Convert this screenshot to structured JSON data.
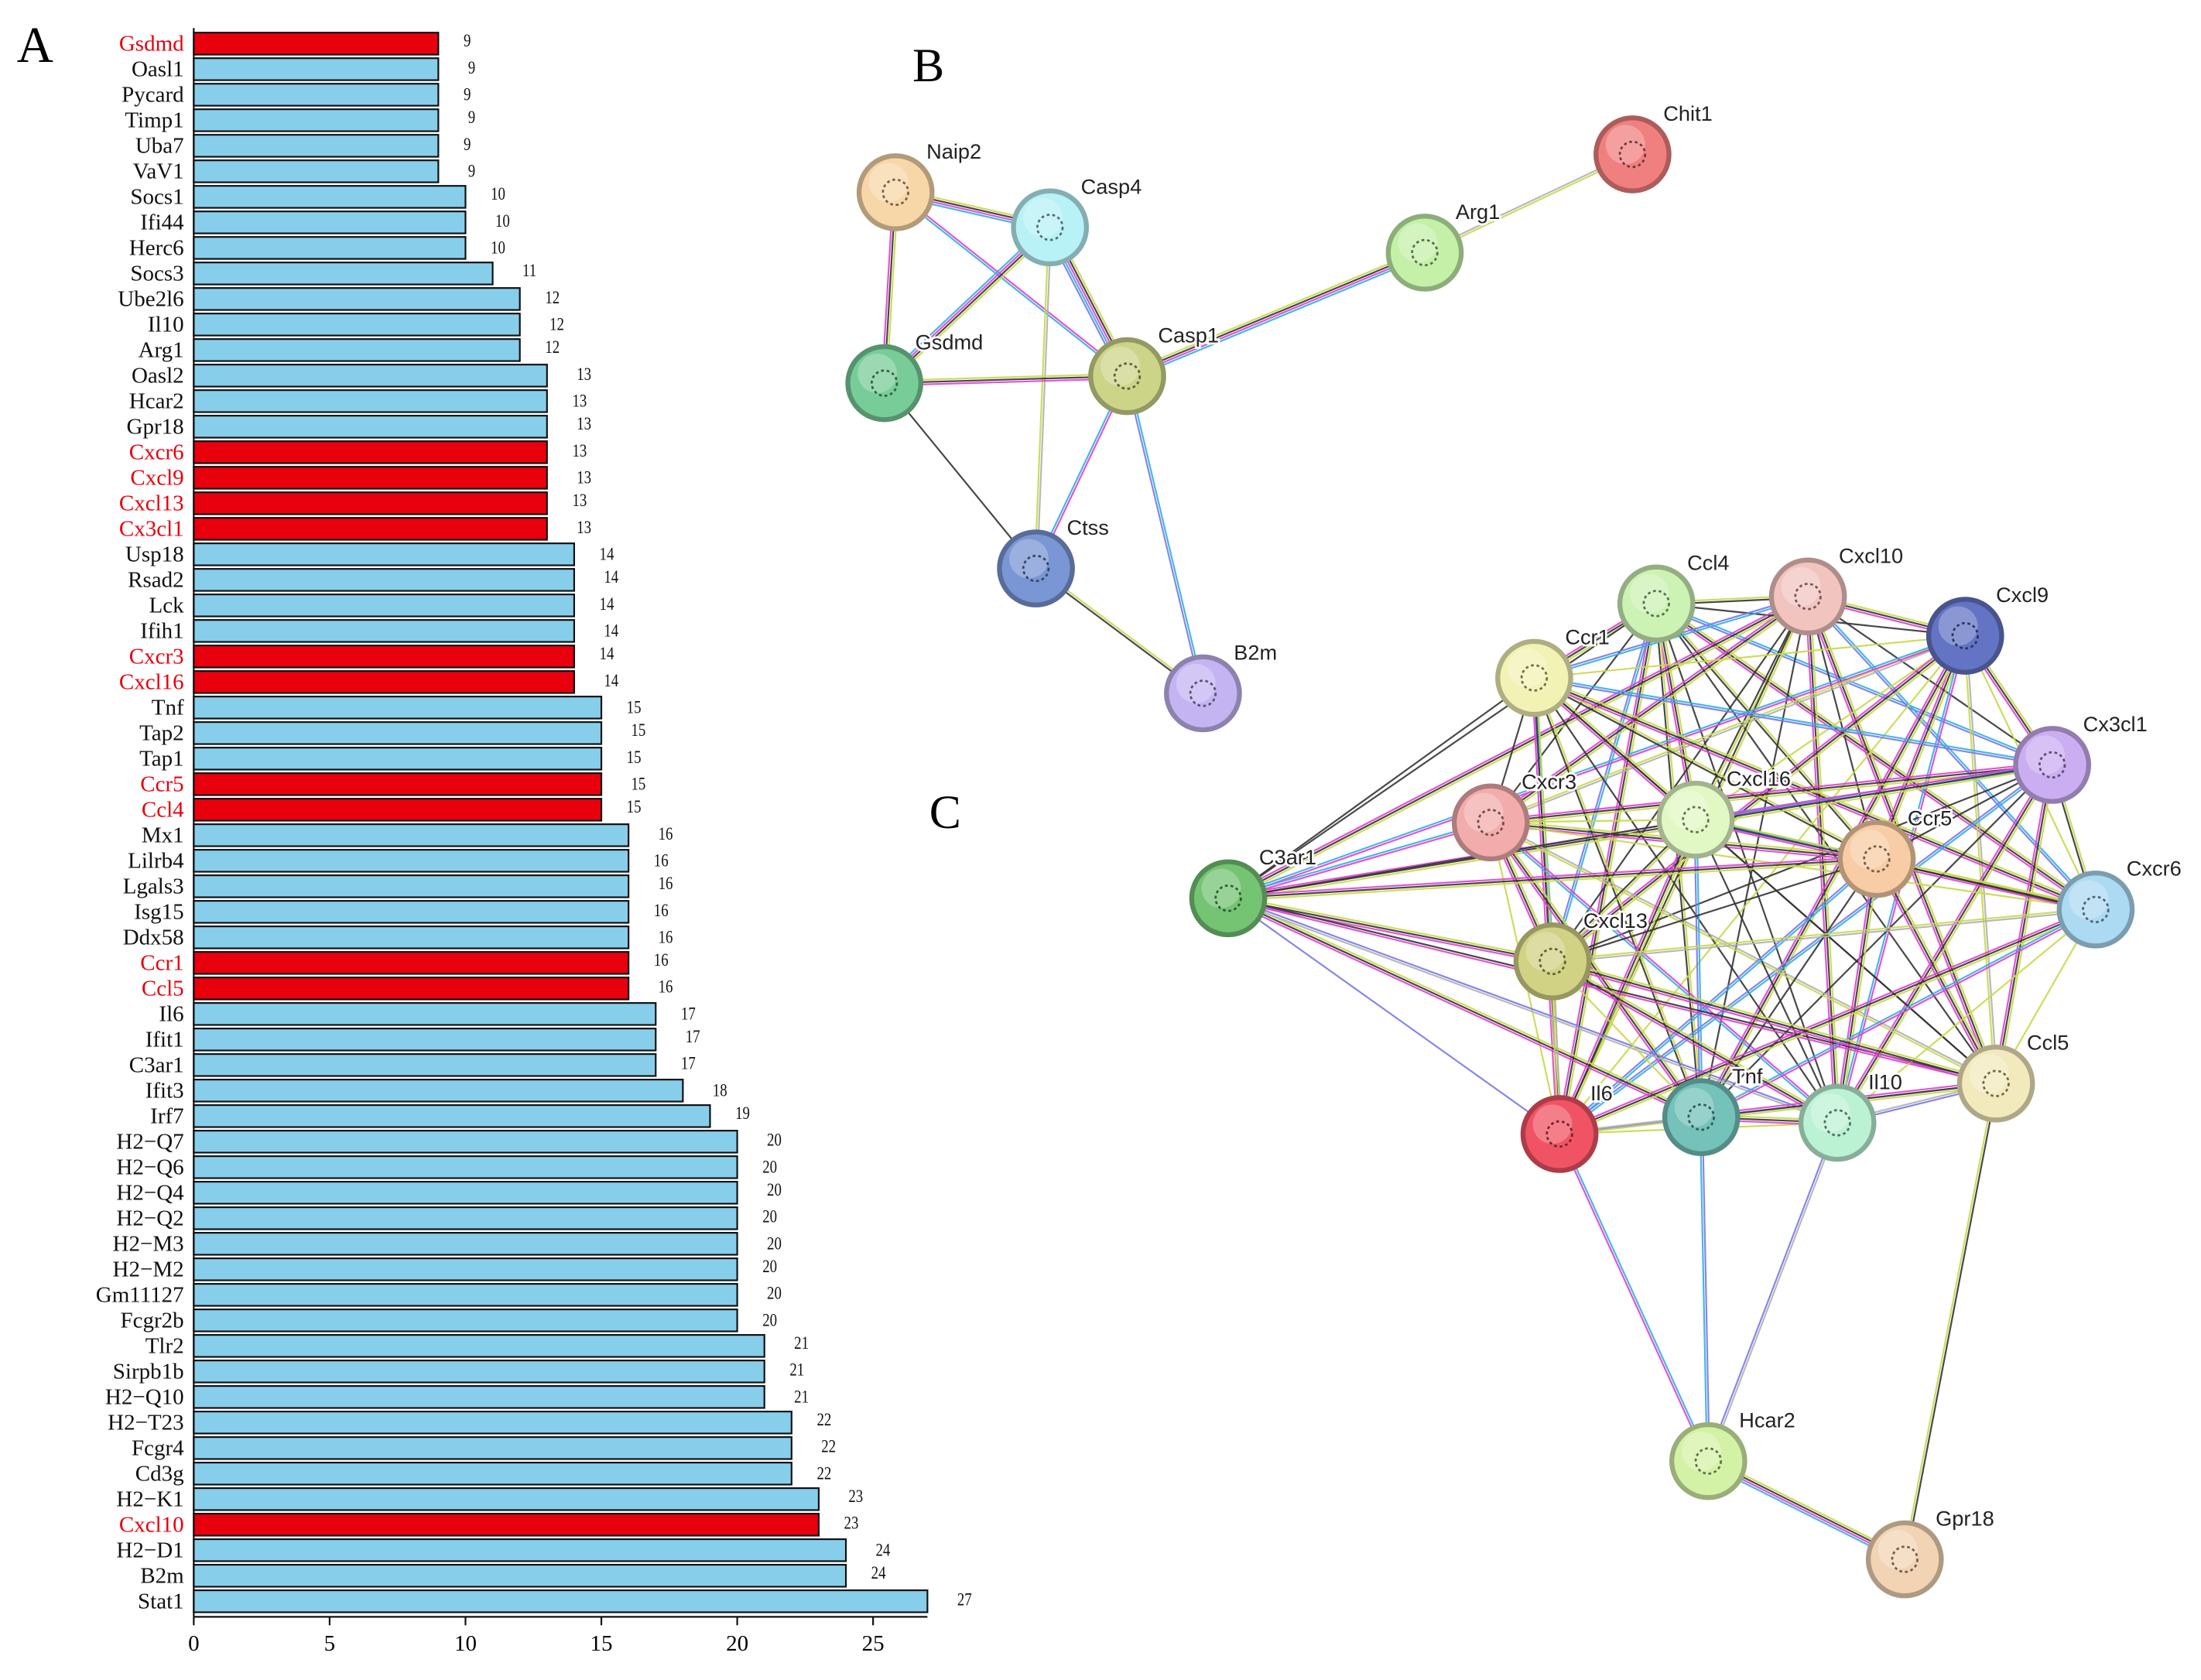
{
  "chart_data": {
    "type": "barh",
    "panel": "A",
    "categories": [
      "Gsdmd",
      "Oasl1",
      "Pycard",
      "Timp1",
      "Uba7",
      "VaV1",
      "Socs1",
      "Ifi44",
      "Herc6",
      "Socs3",
      "Ube2l6",
      "Il10",
      "Arg1",
      "Oasl2",
      "Hcar2",
      "Gpr18",
      "Cxcr6",
      "Cxcl9",
      "Cxcl13",
      "Cx3cl1",
      "Usp18",
      "Rsad2",
      "Lck",
      "Ifih1",
      "Cxcr3",
      "Cxcl16",
      "Tnf",
      "Tap2",
      "Tap1",
      "Ccr5",
      "Ccl4",
      "Mx1",
      "Lilrb4",
      "Lgals3",
      "Isg15",
      "Ddx58",
      "Ccr1",
      "Ccl5",
      "Il6",
      "Ifit1",
      "C3ar1",
      "Ifit3",
      "Irf7",
      "H2−Q7",
      "H2−Q6",
      "H2−Q4",
      "H2−Q2",
      "H2−M3",
      "H2−M2",
      "Gm11127",
      "Fcgr2b",
      "Tlr2",
      "Sirpb1b",
      "H2−Q10",
      "H2−T23",
      "Fcgr4",
      "Cd3g",
      "H2−K1",
      "Cxcl10",
      "H2−D1",
      "B2m",
      "Stat1"
    ],
    "values": [
      9,
      9,
      9,
      9,
      9,
      9,
      10,
      10,
      10,
      11,
      12,
      12,
      12,
      13,
      13,
      13,
      13,
      13,
      13,
      13,
      14,
      14,
      14,
      14,
      14,
      14,
      15,
      15,
      15,
      15,
      15,
      16,
      16,
      16,
      16,
      16,
      16,
      16,
      17,
      17,
      17,
      18,
      19,
      20,
      20,
      20,
      20,
      20,
      20,
      20,
      20,
      21,
      21,
      21,
      22,
      22,
      22,
      23,
      23,
      24,
      24,
      27
    ],
    "colors": [
      "#e8000d",
      "#87ceeb",
      "#87ceeb",
      "#87ceeb",
      "#87ceeb",
      "#87ceeb",
      "#87ceeb",
      "#87ceeb",
      "#87ceeb",
      "#87ceeb",
      "#87ceeb",
      "#87ceeb",
      "#87ceeb",
      "#87ceeb",
      "#87ceeb",
      "#87ceeb",
      "#e8000d",
      "#e8000d",
      "#e8000d",
      "#e8000d",
      "#87ceeb",
      "#87ceeb",
      "#87ceeb",
      "#87ceeb",
      "#e8000d",
      "#e8000d",
      "#87ceeb",
      "#87ceeb",
      "#87ceeb",
      "#e8000d",
      "#e8000d",
      "#87ceeb",
      "#87ceeb",
      "#87ceeb",
      "#87ceeb",
      "#87ceeb",
      "#e8000d",
      "#e8000d",
      "#87ceeb",
      "#87ceeb",
      "#87ceeb",
      "#87ceeb",
      "#87ceeb",
      "#87ceeb",
      "#87ceeb",
      "#87ceeb",
      "#87ceeb",
      "#87ceeb",
      "#87ceeb",
      "#87ceeb",
      "#87ceeb",
      "#87ceeb",
      "#87ceeb",
      "#87ceeb",
      "#87ceeb",
      "#87ceeb",
      "#87ceeb",
      "#87ceeb",
      "#e8000d",
      "#87ceeb",
      "#87ceeb",
      "#87ceeb"
    ],
    "highlight_color": "#e8000d",
    "xlim": [
      0,
      27
    ],
    "xticks": [
      0,
      5,
      10,
      15,
      20,
      25
    ]
  },
  "network_b": {
    "panel": "B",
    "nodes": [
      "Naip2",
      "Casp4",
      "Chit1",
      "Arg1",
      "Gsdmd",
      "Casp1",
      "Ctss",
      "B2m"
    ]
  },
  "network_c": {
    "panel": "C",
    "nodes": [
      "Ccl4",
      "Cxcl10",
      "Cxcl9",
      "Ccr1",
      "Cx3cl1",
      "Cxcr3",
      "Cxcl16",
      "Ccr5",
      "C3ar1",
      "Cxcr6",
      "Cxcl13",
      "Ccl5",
      "Il6",
      "Tnf",
      "Il10",
      "Hcar2",
      "Gpr18"
    ]
  }
}
